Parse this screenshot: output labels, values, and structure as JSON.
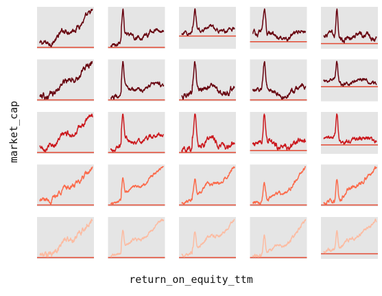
{
  "chart_data": {
    "type": "line",
    "title": "",
    "xlabel": "return_on_equity_ttm",
    "ylabel": "market_cap",
    "grid": false,
    "legend": "none",
    "panel_background": "#e5e5e5",
    "baseline_color": "#e34a33",
    "row_colors": [
      "#67000d",
      "#67000d",
      "#cb181d",
      "#fb6a4a",
      "#fcbba1"
    ],
    "rows": 5,
    "cols": 5,
    "series_shapes": [
      "rise",
      "spike-early",
      "spike-mid",
      "spike-late",
      "flat-spike"
    ],
    "baseline_levels": [
      [
        0.0,
        0.0,
        0.3,
        0.15,
        0.1
      ],
      [
        0.0,
        0.0,
        0.0,
        0.0,
        0.35
      ],
      [
        0.0,
        0.0,
        0.0,
        0.05,
        0.2
      ],
      [
        0.0,
        0.0,
        0.0,
        0.0,
        0.0
      ],
      [
        0.0,
        0.0,
        0.0,
        0.0,
        0.1
      ]
    ]
  }
}
